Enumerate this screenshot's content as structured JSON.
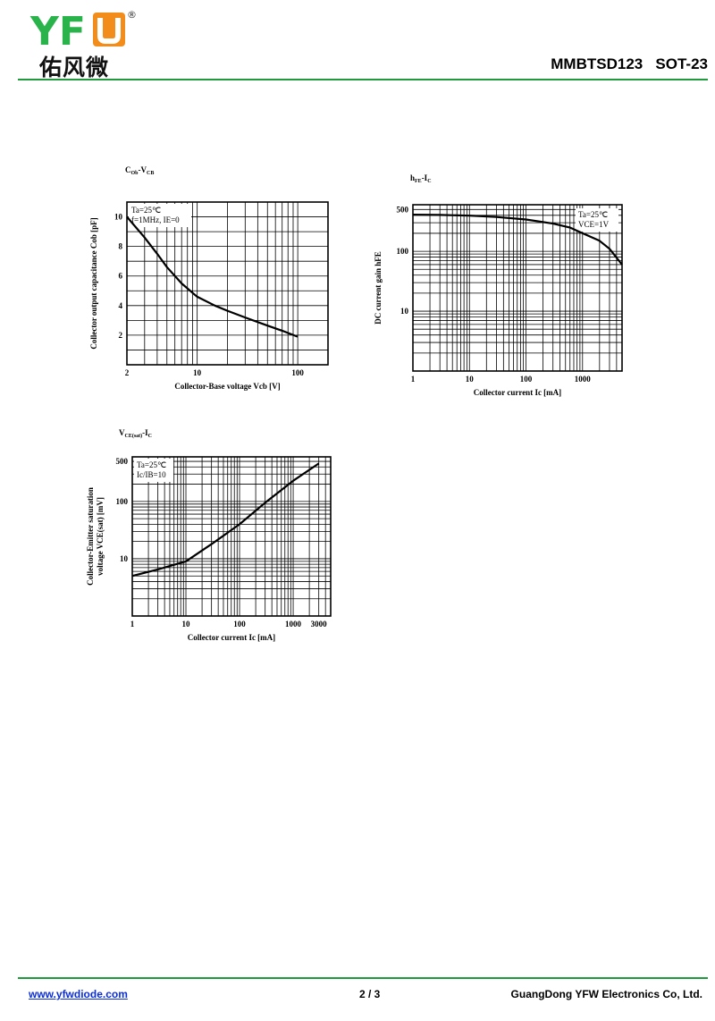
{
  "header": {
    "logo_text": "YFW",
    "logo_cn": "佑风微",
    "registered_mark": "®",
    "part": "MMBTSD123",
    "package": "SOT-23"
  },
  "footer": {
    "website": "www.yfwdiode.com",
    "page": "2 / 3",
    "company": "GuangDong YFW Electronics Co, Ltd."
  },
  "colors": {
    "accent": "#1f9a3d",
    "logo_green": "#2bb34b",
    "logo_orange": "#f28c1a",
    "link": "#0b2ed6"
  },
  "chart_data": [
    {
      "type": "line",
      "title_main": "C",
      "title_sub1": "Ob",
      "title_mid": "-V",
      "title_sub2": "CB",
      "xlabel": "Collector-Base voltage Vcb [V]",
      "ylabel": "Collector output capacitance Cob [pF]",
      "x_scale": "log",
      "xlim": [
        2,
        200
      ],
      "ylim": [
        0,
        11
      ],
      "x_ticks": [
        2,
        10,
        100
      ],
      "x_tick_labels": [
        "2",
        "10",
        "100"
      ],
      "y_ticks": [
        2,
        4,
        6,
        8,
        10
      ],
      "y_tick_labels": [
        "2",
        "4",
        "6",
        "8",
        "10"
      ],
      "x_grid": [
        2,
        3,
        4,
        5,
        6,
        7,
        8,
        9,
        10,
        20,
        30,
        40,
        50,
        60,
        70,
        80,
        90,
        100,
        200
      ],
      "y_grid": [
        0,
        1,
        2,
        3,
        4,
        5,
        6,
        7,
        8,
        9,
        10,
        11
      ],
      "notes": [
        "Ta=25℃",
        "f=1MHz, IE=0"
      ],
      "series": [
        {
          "x": [
            2,
            3,
            4,
            5,
            7,
            10,
            15,
            20,
            30,
            50,
            70,
            100
          ],
          "y": [
            10,
            8.6,
            7.5,
            6.6,
            5.5,
            4.6,
            4.0,
            3.65,
            3.2,
            2.65,
            2.3,
            1.9
          ]
        }
      ]
    },
    {
      "type": "line",
      "title_main": "h",
      "title_sub1": "FE",
      "title_mid": "-I",
      "title_sub2": "C",
      "xlabel": "Collector current Ic [mA]",
      "ylabel": "DC current gain hFE",
      "x_scale": "log",
      "y_scale": "log",
      "xlim": [
        1,
        5000
      ],
      "ylim": [
        1,
        600
      ],
      "x_ticks": [
        1,
        10,
        100,
        1000
      ],
      "x_tick_labels": [
        "1",
        "10",
        "100",
        "1000"
      ],
      "y_ticks": [
        10,
        100,
        500
      ],
      "y_tick_labels": [
        "10",
        "100",
        "500"
      ],
      "x_grid": [
        1,
        2,
        3,
        4,
        5,
        6,
        7,
        8,
        9,
        10,
        20,
        30,
        40,
        50,
        60,
        70,
        80,
        90,
        100,
        200,
        300,
        400,
        500,
        600,
        700,
        800,
        900,
        1000,
        2000,
        3000,
        4000,
        5000
      ],
      "y_grid": [
        1,
        2,
        3,
        4,
        5,
        6,
        7,
        8,
        9,
        10,
        20,
        30,
        40,
        50,
        60,
        70,
        80,
        90,
        100,
        200,
        300,
        400,
        500,
        600
      ],
      "notes": [
        "Ta=25℃",
        "VCE=1V"
      ],
      "series": [
        {
          "x": [
            1,
            3,
            10,
            30,
            100,
            300,
            600,
            1000,
            2000,
            3000,
            5000
          ],
          "y": [
            410,
            405,
            395,
            375,
            340,
            290,
            250,
            200,
            150,
            110,
            60
          ]
        }
      ]
    },
    {
      "type": "line",
      "title_main": "V",
      "title_sub1": "CE(sat)",
      "title_mid": "-I",
      "title_sub2": "C",
      "xlabel": "Collector current Ic [mA]",
      "ylabel": "Collector-Emitter saturation voltage VCE(sat) [mV]",
      "x_scale": "log",
      "y_scale": "log",
      "xlim": [
        1,
        5000
      ],
      "ylim": [
        1,
        600
      ],
      "x_ticks": [
        1,
        10,
        100,
        1000,
        3000
      ],
      "x_tick_labels": [
        "1",
        "10",
        "100",
        "1000",
        "3000"
      ],
      "y_ticks": [
        10,
        100,
        500
      ],
      "y_tick_labels": [
        "10",
        "100",
        "500"
      ],
      "x_grid": [
        1,
        2,
        3,
        4,
        5,
        6,
        7,
        8,
        9,
        10,
        20,
        30,
        40,
        50,
        60,
        70,
        80,
        90,
        100,
        200,
        300,
        400,
        500,
        600,
        700,
        800,
        900,
        1000,
        2000,
        3000,
        4000,
        5000
      ],
      "y_grid": [
        1,
        2,
        3,
        4,
        5,
        6,
        7,
        8,
        9,
        10,
        20,
        30,
        40,
        50,
        60,
        70,
        80,
        90,
        100,
        200,
        300,
        400,
        500,
        600
      ],
      "notes": [
        "Ta=25℃",
        "Ic/IB=10"
      ],
      "series": [
        {
          "x": [
            1,
            3,
            10,
            30,
            100,
            300,
            1000,
            3000
          ],
          "y": [
            5,
            6.5,
            9,
            18,
            40,
            95,
            230,
            460
          ]
        }
      ]
    }
  ]
}
